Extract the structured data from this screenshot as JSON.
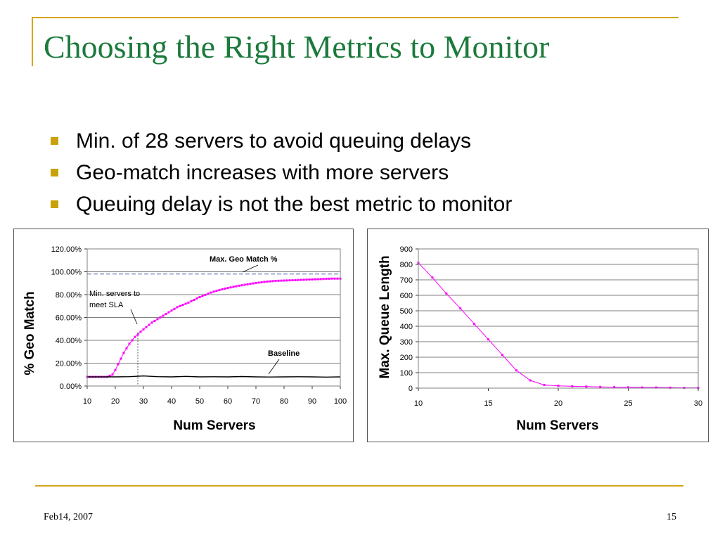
{
  "slide": {
    "title": "Choosing the Right Metrics to Monitor",
    "bullets": [
      "Min. of 28 servers to avoid queuing delays",
      "Geo-match increases with more servers",
      "Queuing delay is not the best metric to monitor"
    ],
    "footer_date": "Feb14, 2007",
    "page_number": "15"
  },
  "colors": {
    "title": "#1b7a3c",
    "frame": "#d4a51e",
    "bullet": "#c9a20a",
    "series": "#ff00ff",
    "baseline": "#000000",
    "max_line": "#4a5fa8"
  },
  "chart_data": [
    {
      "type": "line",
      "xlabel": "Num Servers",
      "ylabel": "% Geo Match",
      "xlim": [
        10,
        100
      ],
      "ylim": [
        0,
        120
      ],
      "xticks": [
        10,
        20,
        30,
        40,
        50,
        60,
        70,
        80,
        90,
        100
      ],
      "yticks": [
        "0.00%",
        "20.00%",
        "40.00%",
        "60.00%",
        "80.00%",
        "100.00%",
        "120.00%"
      ],
      "grid": true,
      "legend": "none",
      "series": [
        {
          "x": [
            10,
            11,
            12,
            13,
            14,
            15,
            16,
            17,
            18,
            19,
            20,
            21,
            22,
            23,
            24,
            25,
            26,
            27,
            28,
            29,
            30,
            31,
            32,
            33,
            34,
            35,
            36,
            37,
            38,
            39,
            40,
            41,
            42,
            43,
            44,
            45,
            46,
            47,
            48,
            49,
            50,
            51,
            52,
            53,
            54,
            55,
            56,
            57,
            58,
            59,
            60,
            61,
            62,
            63,
            64,
            65,
            66,
            67,
            68,
            69,
            70,
            71,
            72,
            73,
            74,
            75,
            76,
            77,
            78,
            79,
            80,
            81,
            82,
            83,
            84,
            85,
            86,
            87,
            88,
            89,
            90,
            91,
            92,
            93,
            94,
            95,
            96,
            97,
            98,
            99,
            100
          ],
          "y": [
            8,
            8,
            8,
            8,
            8,
            8,
            8,
            8,
            9,
            10,
            14,
            19,
            24,
            29,
            33,
            37,
            40,
            43,
            45,
            47.5,
            49.5,
            51.5,
            53.5,
            55.5,
            57,
            58.5,
            60,
            61.5,
            63,
            64.5,
            66,
            67.5,
            69,
            70,
            71,
            72,
            73,
            74.2,
            75.4,
            76.6,
            77.8,
            78.8,
            79.8,
            80.8,
            81.8,
            82.6,
            83.3,
            84,
            84.6,
            85.2,
            85.8,
            86.3,
            86.8,
            87.3,
            87.8,
            88.2,
            88.6,
            89,
            89.4,
            89.8,
            90.2,
            90.5,
            90.8,
            91.1,
            91.4,
            91.6,
            91.8,
            92,
            92.1,
            92.2,
            92.3,
            92.4,
            92.5,
            92.6,
            92.7,
            92.8,
            92.9,
            93,
            93.1,
            93.2,
            93.3,
            93.4,
            93.5,
            93.6,
            93.7,
            93.8,
            93.9,
            94,
            94,
            94,
            94
          ]
        },
        {
          "x": [
            10,
            15,
            20,
            25,
            30,
            35,
            40,
            45,
            50,
            55,
            60,
            65,
            70,
            75,
            80,
            85,
            90,
            95,
            100
          ],
          "y": [
            8,
            8,
            8,
            8.2,
            8.8,
            8.2,
            8,
            8.4,
            8,
            8.1,
            8,
            8.3,
            8,
            7.9,
            8,
            8.1,
            8,
            7.8,
            8
          ]
        }
      ],
      "reference_line": {
        "y": 98
      },
      "vertical_marker": {
        "x": 28
      },
      "annotations": {
        "max_label": "Max. Geo Match %",
        "min_servers_line1": "Min. servers to",
        "min_servers_line2": "meet SLA",
        "baseline_label": "Baseline"
      }
    },
    {
      "type": "line",
      "xlabel": "Num Servers",
      "ylabel": "Max. Queue Length",
      "xlim": [
        10,
        30
      ],
      "ylim": [
        0,
        900
      ],
      "xticks": [
        10,
        15,
        20,
        25,
        30
      ],
      "yticks": [
        0,
        100,
        200,
        300,
        400,
        500,
        600,
        700,
        800,
        900
      ],
      "grid": true,
      "legend": "none",
      "series": [
        {
          "x": [
            10,
            11,
            12,
            13,
            14,
            15,
            16,
            17,
            18,
            19,
            20,
            21,
            22,
            23,
            24,
            25,
            26,
            27,
            28,
            29,
            30
          ],
          "y": [
            810,
            715,
            612,
            515,
            415,
            315,
            215,
            115,
            50,
            20,
            15,
            12,
            10,
            8,
            6,
            5,
            4,
            4,
            3,
            2,
            2
          ]
        }
      ]
    }
  ]
}
